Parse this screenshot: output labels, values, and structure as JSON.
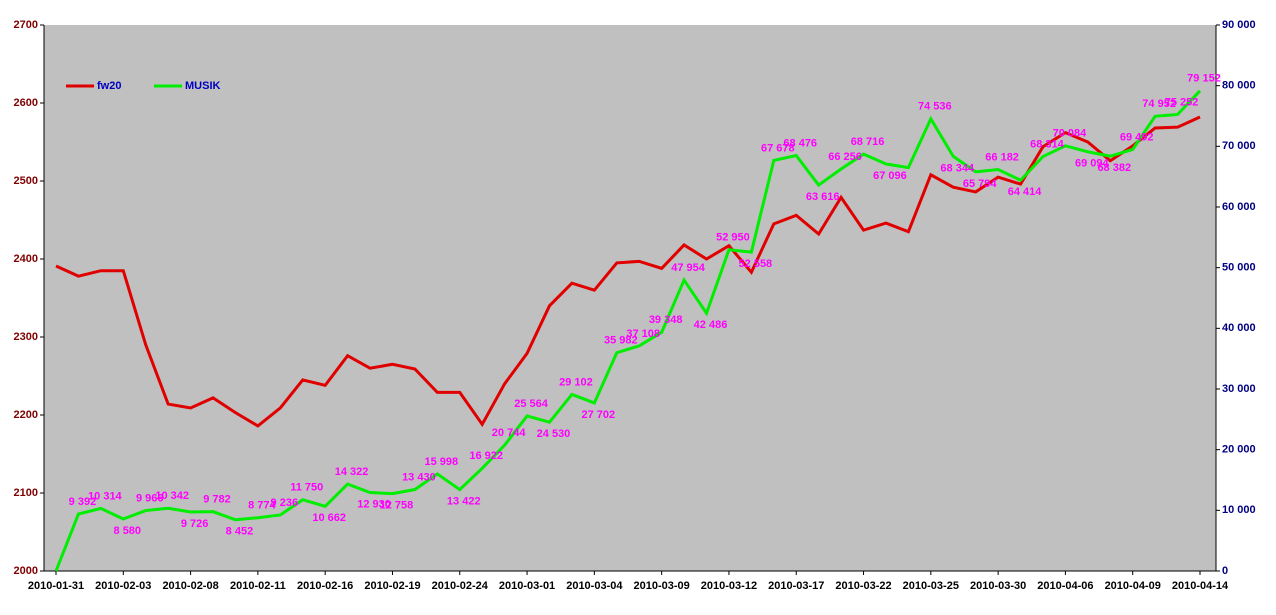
{
  "chart_data": {
    "type": "line",
    "categories": [
      "2010-01-31",
      null,
      null,
      "2010-02-03",
      null,
      null,
      "2010-02-08",
      null,
      null,
      "2010-02-11",
      null,
      null,
      "2010-02-16",
      null,
      null,
      "2010-02-19",
      null,
      null,
      "2010-02-24",
      null,
      null,
      "2010-03-01",
      null,
      null,
      "2010-03-04",
      null,
      null,
      "2010-03-09",
      null,
      null,
      "2010-03-12",
      null,
      null,
      "2010-03-17",
      null,
      null,
      "2010-03-22",
      null,
      null,
      "2010-03-25",
      null,
      null,
      "2010-03-30",
      null,
      null,
      "2010-04-06",
      null,
      null,
      "2010-04-09",
      null,
      null,
      "2010-04-14"
    ],
    "series": [
      {
        "name": "fw20",
        "color": "#e00000",
        "values": [
          2391,
          2378,
          2385,
          2385,
          2290,
          2214,
          2209,
          2222,
          2203,
          2186,
          2209,
          2245,
          2238,
          2276,
          2260,
          2265,
          2259,
          2229,
          2229,
          2188,
          2240,
          2279,
          2340,
          2369,
          2360,
          2395,
          2397,
          2388,
          2418,
          2400,
          2417,
          2383,
          2445,
          2456,
          2432,
          2479,
          2437,
          2446,
          2435,
          2508,
          2492,
          2486,
          2505,
          2496,
          2544,
          2562,
          2550,
          2526,
          2545,
          2568,
          2569,
          2582
        ]
      },
      {
        "name": "MUSIK",
        "color": "#00ee00",
        "axis": "y2",
        "values": [
          0,
          9392,
          10314,
          8580,
          9966,
          10342,
          9726,
          9782,
          8452,
          8774,
          9236,
          11750,
          10662,
          14322,
          12930,
          12758,
          13430,
          15998,
          13422,
          16922,
          20744,
          25564,
          24530,
          29102,
          27702,
          35982,
          37108,
          39348,
          47954,
          42486,
          52950,
          52558,
          67678,
          68476,
          63616,
          66256,
          68716,
          67096,
          66500,
          74536,
          68344,
          65794,
          66182,
          64414,
          68314,
          70084,
          69094,
          68382,
          69492,
          74952,
          75252,
          79152
        ],
        "value_labels": [
          null,
          "9 392",
          "10 314",
          "8 580",
          "9 966",
          "10 342",
          "9 726",
          "9 782",
          "8 452",
          "8 774",
          "9 236",
          "11 750",
          "10 662",
          "14 322",
          "12 930",
          "12 758",
          "13 430",
          "15 998",
          "13 422",
          "16 922",
          "20 744",
          "25 564",
          "24 530",
          "29 102",
          "27 702",
          "35 982",
          "37 108",
          "39 348",
          "47 954",
          "42 486",
          "52 950",
          "52 558",
          "67 678",
          "68 476",
          "63 616",
          "66 256",
          "68 716",
          "67 096",
          null,
          "74 536",
          "68 344",
          "65 794",
          "66 182",
          "64 414",
          "68 314",
          "70 084",
          "69 094",
          "68 382",
          "69 492",
          "74 952",
          "75 252",
          "79 152"
        ]
      }
    ],
    "ylim": [
      2000,
      2700
    ],
    "yticks": [
      2000,
      2100,
      2200,
      2300,
      2400,
      2500,
      2600,
      2700
    ],
    "y2lim": [
      0,
      90000
    ],
    "y2ticks": [
      0,
      {
        "value": 10000,
        "label": "10 000"
      },
      {
        "value": 20000,
        "label": "20 000"
      },
      {
        "value": 30000,
        "label": "30 000"
      },
      {
        "value": 40000,
        "label": "40 000"
      },
      {
        "value": 50000,
        "label": "50 000"
      },
      {
        "value": 60000,
        "label": "60 000"
      },
      {
        "value": 70000,
        "label": "70 000"
      },
      {
        "value": 80000,
        "label": "80 000"
      },
      {
        "value": 90000,
        "label": "90 000"
      }
    ],
    "legend": "top-left"
  }
}
